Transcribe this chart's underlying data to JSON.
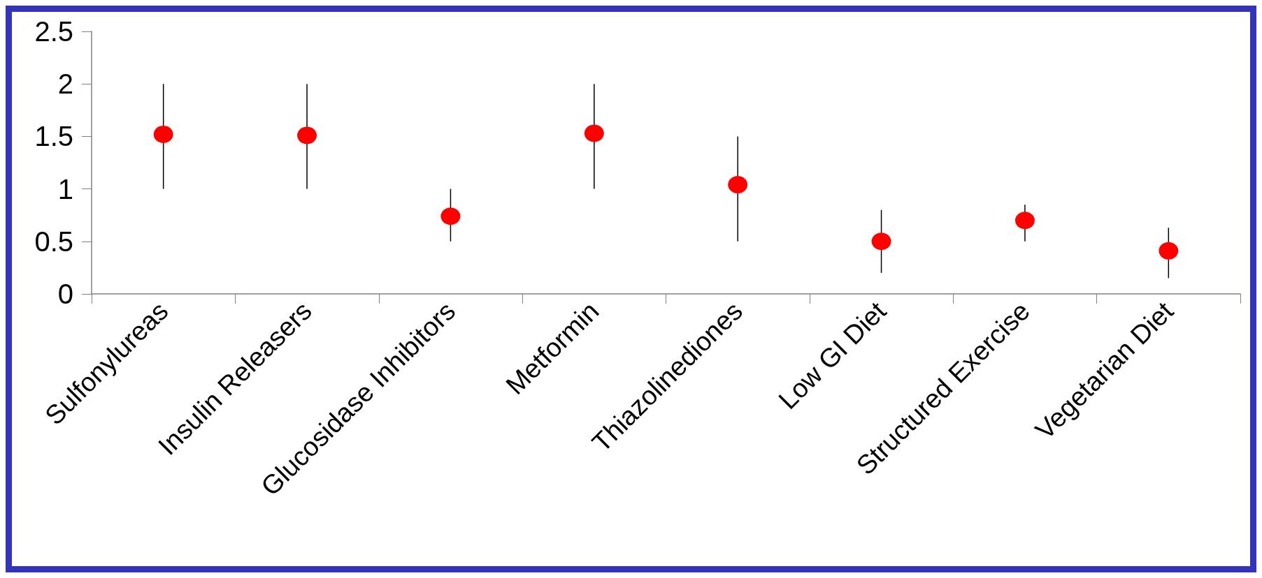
{
  "chart_data": {
    "type": "scatter",
    "categories": [
      "Sulfonylureas",
      "Insulin Releasers",
      "Glucosidase Inhibitors",
      "Metformin",
      "Thiazolinediones",
      "Low GI Diet",
      "Structured Exercise",
      "Vegetarian Diet"
    ],
    "values": [
      1.52,
      1.51,
      0.74,
      1.53,
      1.04,
      0.5,
      0.7,
      0.41
    ],
    "errors": [
      [
        1,
        2
      ],
      [
        1,
        2
      ],
      [
        0.5,
        1
      ],
      [
        1,
        2
      ],
      [
        0.5,
        1.5
      ],
      [
        0.2,
        0.8
      ],
      [
        0.5,
        0.85
      ],
      [
        0.15,
        0.63
      ]
    ],
    "color": "#ff0000",
    "marker": "circle",
    "ylim": [
      0,
      2.5
    ],
    "yticks": [
      0,
      0.5,
      1,
      1.5,
      2,
      2.5
    ],
    "grid": false
  }
}
